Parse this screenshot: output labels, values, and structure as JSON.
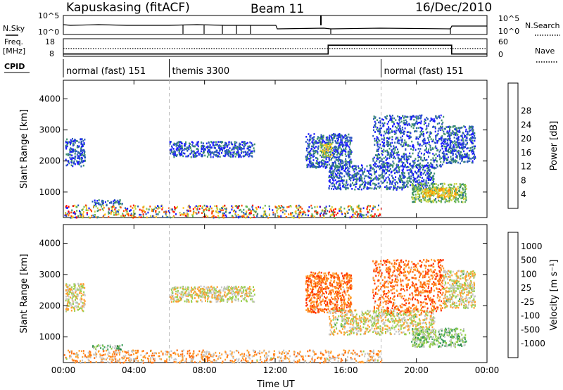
{
  "header": {
    "station": "Kapuskasing (fitACF)",
    "beam": "Beam 11",
    "date": "16/Dec/2010"
  },
  "strip": {
    "nsky_label": "N.Sky",
    "noise_left_ticks": [
      "10^5",
      "10^0"
    ],
    "noise_right_ticks": [
      "10^5",
      "10^0"
    ],
    "nsearch_label": "N.Search",
    "freq_label": "Freq.",
    "freq_unit": "[MHz]",
    "freq_ticks": [
      "18",
      "8"
    ],
    "nave_ticks": [
      "60",
      "0"
    ],
    "nave_label": "Nave",
    "cpid_label": "CPID",
    "cpid_segments": [
      {
        "label": "normal (fast) 151",
        "start": 0,
        "end": 6
      },
      {
        "label": "themis 3300",
        "start": 6,
        "end": 18
      },
      {
        "label": "normal (fast) 151",
        "start": 18,
        "end": 24
      }
    ],
    "nave_series_hours": [
      0,
      6,
      6,
      15,
      15,
      22,
      22,
      24
    ],
    "nave_series_values": [
      8,
      8,
      8,
      8,
      38,
      38,
      8,
      8
    ]
  },
  "chart_data": [
    {
      "type": "heatmap",
      "panel": "power",
      "ylabel": "Slant Range [km]",
      "ylim": [
        180,
        4600
      ],
      "yticks": [
        "1000",
        "2000",
        "3000",
        "4000"
      ],
      "xlim": [
        0,
        24
      ],
      "xticks": [
        "00:00",
        "04:00",
        "08:00",
        "12:00",
        "16:00",
        "20:00",
        "00:00"
      ],
      "colorbar_label": "Power [dB]",
      "colorbar_ticks": [
        "4",
        "8",
        "12",
        "16",
        "20",
        "24",
        "28"
      ],
      "colors": [
        "#1a1aff",
        "#2a5bb8",
        "#3d8f6c",
        "#66b650",
        "#c8d23c",
        "#ffc21a",
        "#ff8c00",
        "#ff4400",
        "#ff0000"
      ],
      "echo_regions": [
        {
          "t0": 0.1,
          "t1": 1.2,
          "r0": 1850,
          "r1": 2750,
          "level": 1
        },
        {
          "t0": 1.6,
          "t1": 3.3,
          "r0": 620,
          "r1": 770,
          "level": 1
        },
        {
          "t0": 6.0,
          "t1": 10.8,
          "r0": 2150,
          "r1": 2650,
          "level": 1
        },
        {
          "t0": 13.7,
          "t1": 16.3,
          "r0": 1800,
          "r1": 2900,
          "level": 1
        },
        {
          "t0": 14.5,
          "t1": 15.2,
          "r0": 2150,
          "r1": 2600,
          "level": 4
        },
        {
          "t0": 15.0,
          "t1": 21.0,
          "r0": 1100,
          "r1": 1900,
          "level": 1
        },
        {
          "t0": 17.5,
          "t1": 21.5,
          "r0": 1800,
          "r1": 3500,
          "level": 1
        },
        {
          "t0": 19.7,
          "t1": 22.8,
          "r0": 700,
          "r1": 1300,
          "level": 3
        },
        {
          "t0": 20.3,
          "t1": 22.3,
          "r0": 850,
          "r1": 1150,
          "level": 5
        },
        {
          "t0": 21.5,
          "t1": 23.3,
          "r0": 1950,
          "r1": 3150,
          "level": 1
        },
        {
          "t0": 0.0,
          "t1": 18.0,
          "r0": 200,
          "r1": 600,
          "level": 2
        }
      ]
    },
    {
      "type": "heatmap",
      "panel": "velocity",
      "ylabel": "Slant Range [km]",
      "ylim": [
        180,
        4600
      ],
      "yticks": [
        "1000",
        "2000",
        "3000",
        "4000"
      ],
      "xlabel": "Time UT",
      "xlim": [
        0,
        24
      ],
      "xticks": [
        "00:00",
        "04:00",
        "08:00",
        "12:00",
        "16:00",
        "20:00",
        "00:00"
      ],
      "colorbar_label": "Velocity [m s⁻¹]",
      "colorbar_ticks": [
        "1000",
        "500",
        "100",
        "25",
        "-25",
        "-100",
        "-500",
        "-1000"
      ],
      "colors": [
        "#2a3cd0",
        "#2a6e3a",
        "#3da05a",
        "#9ad050",
        "#c8c8c8",
        "#ff9f30",
        "#ff7010",
        "#ff3000",
        "#ff0000"
      ],
      "echo_regions": [
        {
          "t0": 0.1,
          "t1": 1.2,
          "r0": 1850,
          "r1": 2750,
          "level": 4
        },
        {
          "t0": 1.6,
          "t1": 3.3,
          "r0": 620,
          "r1": 770,
          "level": 3
        },
        {
          "t0": 6.0,
          "t1": 10.8,
          "r0": 2150,
          "r1": 2650,
          "level": 4
        },
        {
          "t0": 13.7,
          "t1": 16.3,
          "r0": 1800,
          "r1": 3100,
          "level": 6
        },
        {
          "t0": 15.0,
          "t1": 21.0,
          "r0": 1100,
          "r1": 1900,
          "level": 4
        },
        {
          "t0": 17.5,
          "t1": 21.5,
          "r0": 1800,
          "r1": 3500,
          "level": 6
        },
        {
          "t0": 19.7,
          "t1": 22.8,
          "r0": 700,
          "r1": 1300,
          "level": 3
        },
        {
          "t0": 21.5,
          "t1": 23.3,
          "r0": 1950,
          "r1": 3150,
          "level": 4
        },
        {
          "t0": 0.0,
          "t1": 18.0,
          "r0": 200,
          "r1": 600,
          "level": 5
        }
      ]
    }
  ]
}
